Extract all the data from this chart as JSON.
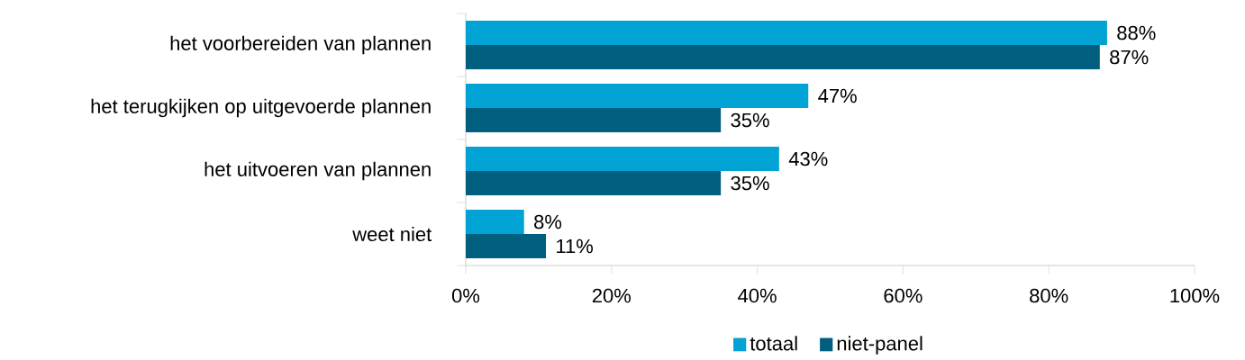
{
  "chart_data": {
    "type": "bar",
    "orientation": "horizontal",
    "categories": [
      "het voorbereiden van plannen",
      "het terugkijken op uitgevoerde plannen",
      "het uitvoeren van plannen",
      "weet niet"
    ],
    "series": [
      {
        "name": "totaal",
        "color": "#00a3d4",
        "values": [
          88,
          47,
          43,
          8
        ],
        "value_labels": [
          "88%",
          "47%",
          "43%",
          "8%"
        ]
      },
      {
        "name": "niet-panel",
        "color": "#005f7f",
        "values": [
          87,
          35,
          35,
          11
        ],
        "value_labels": [
          "87%",
          "35%",
          "35%",
          "11%"
        ]
      }
    ],
    "xlim": [
      0,
      100
    ],
    "xticks": [
      {
        "value": 0,
        "label": "0%"
      },
      {
        "value": 20,
        "label": "20%"
      },
      {
        "value": 40,
        "label": "40%"
      },
      {
        "value": 60,
        "label": "60%"
      },
      {
        "value": 80,
        "label": "80%"
      },
      {
        "value": 100,
        "label": "100%"
      }
    ],
    "legend": "bottom",
    "grid": false
  }
}
